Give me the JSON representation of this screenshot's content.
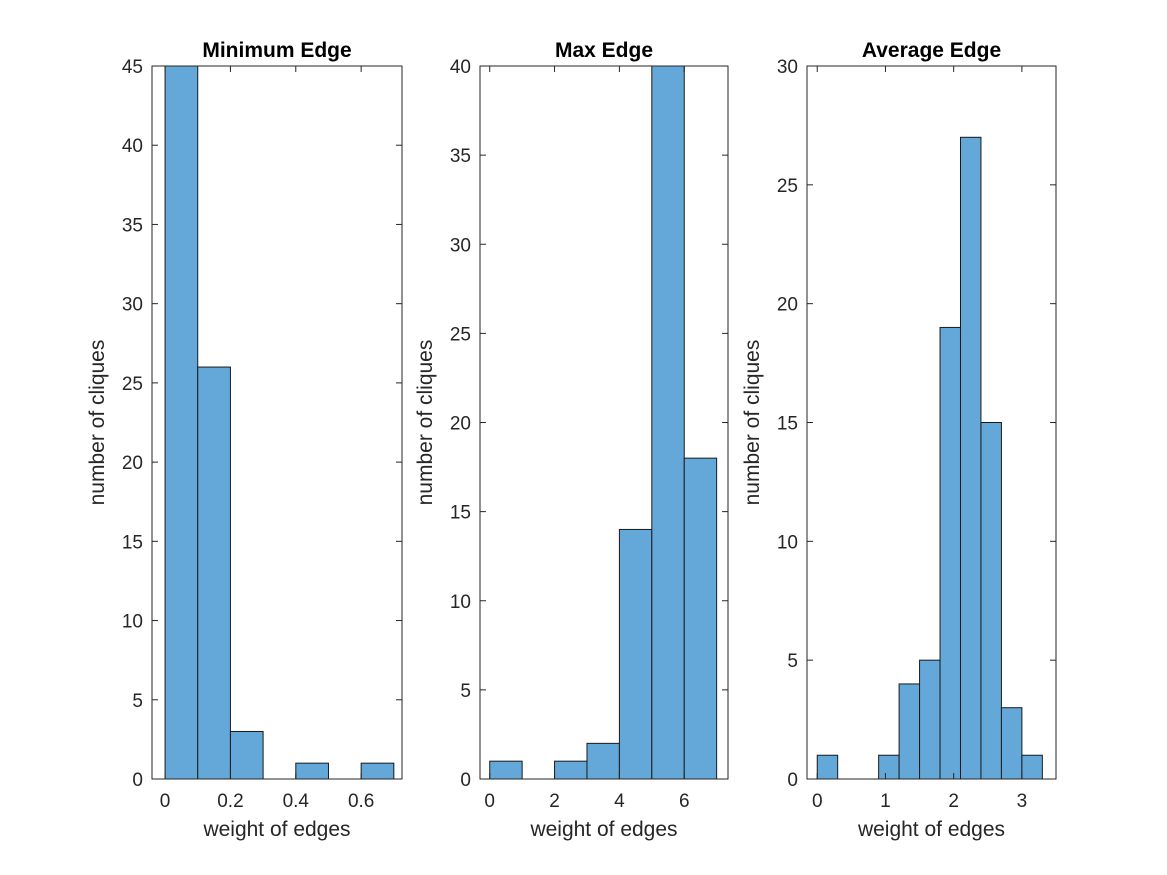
{
  "colors": {
    "bar_fill": "#63a8d9",
    "bar_edge": "#1a1a1a",
    "axis": "#262626"
  },
  "chart_data": [
    {
      "type": "bar",
      "title": "Minimum Edge",
      "xlabel": "weight of edges",
      "ylabel": "number of cliques",
      "xlim": [
        -0.04,
        0.725
      ],
      "ylim": [
        0,
        45
      ],
      "xticks": [
        0,
        0.2,
        0.4,
        0.6
      ],
      "xtick_labels": [
        "0",
        "0.2",
        "0.4",
        "0.6"
      ],
      "yticks": [
        0,
        5,
        10,
        15,
        20,
        25,
        30,
        35,
        40,
        45
      ],
      "bin_edges": [
        0,
        0.1,
        0.2,
        0.3,
        0.4,
        0.5,
        0.6,
        0.7
      ],
      "values": [
        45,
        26,
        3,
        0,
        1,
        0,
        1
      ],
      "grid": false
    },
    {
      "type": "bar",
      "title": "Max Edge",
      "xlabel": "weight of edges",
      "ylabel": "number of cliques",
      "xlim": [
        -0.3,
        7.35
      ],
      "ylim": [
        0,
        40
      ],
      "xticks": [
        0,
        2,
        4,
        6
      ],
      "xtick_labels": [
        "0",
        "2",
        "4",
        "6"
      ],
      "yticks": [
        0,
        5,
        10,
        15,
        20,
        25,
        30,
        35,
        40
      ],
      "bin_edges": [
        0,
        1,
        2,
        3,
        4,
        5,
        6,
        7
      ],
      "values": [
        1,
        0,
        1,
        2,
        14,
        40,
        18
      ],
      "grid": false
    },
    {
      "type": "bar",
      "title": "Average Edge",
      "xlabel": "weight of edges",
      "ylabel": "number of cliques",
      "xlim": [
        -0.15,
        3.5
      ],
      "ylim": [
        0,
        30
      ],
      "xticks": [
        0,
        1,
        2,
        3
      ],
      "xtick_labels": [
        "0",
        "1",
        "2",
        "3"
      ],
      "yticks": [
        0,
        5,
        10,
        15,
        20,
        25,
        30
      ],
      "bin_edges": [
        0,
        0.3,
        0.6,
        0.9,
        1.2,
        1.5,
        1.8,
        2.1,
        2.4,
        2.7,
        3.0,
        3.3
      ],
      "values": [
        1,
        0,
        0,
        1,
        4,
        5,
        19,
        27,
        15,
        3,
        1
      ],
      "grid": false
    }
  ]
}
